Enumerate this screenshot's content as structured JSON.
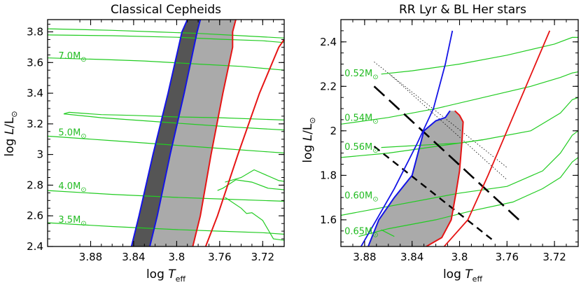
{
  "colors": {
    "track": "#22cc22",
    "blue_edge": "#1414e6",
    "red_edge": "#e61414",
    "strip_fill": "#aaaaaa",
    "dark_fill": "#555555"
  },
  "chart_data": [
    {
      "type": "line",
      "title": "Classical Cepheids",
      "xlabel": "log T_eff",
      "ylabel": "log L/L_⊙",
      "xlim": [
        3.92,
        3.7
      ],
      "ylim": [
        2.4,
        3.88
      ],
      "x_reversed": true,
      "xticks": [
        3.88,
        3.84,
        3.8,
        3.76,
        3.72
      ],
      "xtick_labels": [
        "3.88",
        "3.84",
        "3.8",
        "3.76",
        "3.72"
      ],
      "yticks": [
        2.4,
        2.6,
        2.8,
        3.0,
        3.2,
        3.4,
        3.6,
        3.8
      ],
      "ytick_labels": [
        "2.4",
        "2.6",
        "2.8",
        "3",
        "3.2",
        "3.4",
        "3.6",
        "3.8"
      ],
      "mass_labels": [
        {
          "text": "7.0M",
          "sub": "⊙",
          "x": 3.91,
          "y": 3.625
        },
        {
          "text": "5.0M",
          "sub": "⊙",
          "x": 3.91,
          "y": 3.125
        },
        {
          "text": "4.0M",
          "sub": "⊙",
          "x": 3.91,
          "y": 2.775
        },
        {
          "text": "3.5M",
          "sub": "⊙",
          "x": 3.91,
          "y": 2.555
        }
      ],
      "tracks": [
        {
          "points": [
            [
              3.92,
              3.82
            ],
            [
              3.86,
              3.81
            ],
            [
              3.82,
              3.8
            ],
            [
              3.78,
              3.79
            ],
            [
              3.74,
              3.775
            ],
            [
              3.7,
              3.76
            ]
          ]
        },
        {
          "points": [
            [
              3.92,
              3.78
            ],
            [
              3.86,
              3.775
            ],
            [
              3.8,
              3.765
            ],
            [
              3.76,
              3.752
            ],
            [
              3.72,
              3.742
            ],
            [
              3.7,
              3.73
            ]
          ]
        },
        {
          "points": [
            [
              3.92,
              3.63
            ],
            [
              3.87,
              3.62
            ],
            [
              3.83,
              3.61
            ],
            [
              3.78,
              3.59
            ],
            [
              3.74,
              3.575
            ],
            [
              3.7,
              3.55
            ]
          ]
        },
        {
          "points": [
            [
              3.905,
              3.265
            ],
            [
              3.9,
              3.275
            ],
            [
              3.87,
              3.26
            ],
            [
              3.84,
              3.255
            ],
            [
              3.8,
              3.245
            ],
            [
              3.76,
              3.24
            ],
            [
              3.72,
              3.23
            ],
            [
              3.7,
              3.225
            ]
          ]
        },
        {
          "points": [
            [
              3.905,
              3.265
            ],
            [
              3.87,
              3.24
            ],
            [
              3.83,
              3.22
            ],
            [
              3.79,
              3.2
            ],
            [
              3.75,
              3.18
            ],
            [
              3.7,
              3.16
            ]
          ]
        },
        {
          "points": [
            [
              3.92,
              3.12
            ],
            [
              3.86,
              3.09
            ],
            [
              3.8,
              3.06
            ],
            [
              3.76,
              3.04
            ],
            [
              3.72,
              3.02
            ],
            [
              3.7,
              3.01
            ]
          ]
        },
        {
          "points": [
            [
              3.92,
              2.765
            ],
            [
              3.86,
              2.74
            ],
            [
              3.8,
              2.72
            ],
            [
              3.76,
              2.71
            ],
            [
              3.72,
              2.7
            ],
            [
              3.7,
              2.695
            ]
          ]
        },
        {
          "points": [
            [
              3.92,
              2.555
            ],
            [
              3.86,
              2.53
            ],
            [
              3.8,
              2.51
            ],
            [
              3.76,
              2.5
            ],
            [
              3.72,
              2.49
            ],
            [
              3.7,
              2.48
            ]
          ]
        },
        {
          "points": [
            [
              3.755,
              2.82
            ],
            [
              3.74,
              2.85
            ],
            [
              3.728,
              2.9
            ],
            [
              3.705,
              2.83
            ],
            [
              3.7,
              2.825
            ]
          ]
        },
        {
          "points": [
            [
              3.762,
              2.765
            ],
            [
              3.757,
              2.78
            ],
            [
              3.745,
              2.835
            ],
            [
              3.73,
              2.82
            ],
            [
              3.715,
              2.78
            ],
            [
              3.7,
              2.77
            ]
          ]
        },
        {
          "points": [
            [
              3.755,
              2.72
            ],
            [
              3.74,
              2.65
            ],
            [
              3.735,
              2.615
            ],
            [
              3.73,
              2.62
            ],
            [
              3.72,
              2.57
            ],
            [
              3.71,
              2.45
            ],
            [
              3.7,
              2.44
            ]
          ]
        }
      ],
      "blue_edge_outer": [
        [
          3.842,
          2.4
        ],
        [
          3.835,
          2.6
        ],
        [
          3.822,
          3.0
        ],
        [
          3.808,
          3.4
        ],
        [
          3.795,
          3.8
        ],
        [
          3.79,
          3.88
        ]
      ],
      "blue_edge_inner": [
        [
          3.825,
          2.4
        ],
        [
          3.818,
          2.6
        ],
        [
          3.806,
          3.0
        ],
        [
          3.793,
          3.4
        ],
        [
          3.781,
          3.8
        ],
        [
          3.778,
          3.88
        ]
      ],
      "red_edge_1": [
        [
          3.785,
          2.4
        ],
        [
          3.778,
          2.6
        ],
        [
          3.768,
          3.0
        ],
        [
          3.757,
          3.4
        ],
        [
          3.748,
          3.7
        ],
        [
          3.748,
          3.8
        ],
        [
          3.745,
          3.88
        ]
      ],
      "red_edge_2": [
        [
          3.773,
          2.4
        ],
        [
          3.762,
          2.6
        ],
        [
          3.743,
          3.0
        ],
        [
          3.723,
          3.4
        ],
        [
          3.705,
          3.7
        ],
        [
          3.7,
          3.75
        ]
      ]
    },
    {
      "type": "line",
      "title": "RR Lyr & BL Her stars",
      "xlabel": "log T_eff",
      "ylabel": "log L/L_⊙",
      "xlim": [
        3.9,
        3.7
      ],
      "ylim": [
        1.48,
        2.5
      ],
      "x_reversed": true,
      "xticks": [
        3.88,
        3.84,
        3.8,
        3.76,
        3.72
      ],
      "xtick_labels": [
        "3.88",
        "3.84",
        "3.8",
        "3.76",
        "3.72"
      ],
      "yticks": [
        1.6,
        1.8,
        2.0,
        2.2,
        2.4
      ],
      "ytick_labels": [
        "1.6",
        "1.8",
        "2",
        "2.2",
        "2.4"
      ],
      "mass_labels": [
        {
          "text": "0.52M",
          "sub": "⊙",
          "x": 3.897,
          "y": 2.245
        },
        {
          "text": "0.54M",
          "sub": "⊙",
          "x": 3.897,
          "y": 2.045
        },
        {
          "text": "0.56M",
          "sub": "⊙",
          "x": 3.897,
          "y": 1.915
        },
        {
          "text": "0.60M",
          "sub": "⊙",
          "x": 3.897,
          "y": 1.695
        },
        {
          "text": "0.65M",
          "sub": "⊙",
          "x": 3.897,
          "y": 1.535
        }
      ],
      "tracks": [
        {
          "points": [
            [
              3.866,
              2.255
            ],
            [
              3.84,
              2.27
            ],
            [
              3.8,
              2.3
            ],
            [
              3.76,
              2.34
            ],
            [
              3.72,
              2.39
            ],
            [
              3.705,
              2.42
            ],
            [
              3.7,
              2.42
            ]
          ]
        },
        {
          "points": [
            [
              3.9,
              2.03
            ],
            [
              3.86,
              2.06
            ],
            [
              3.82,
              2.1
            ],
            [
              3.78,
              2.15
            ],
            [
              3.74,
              2.2
            ],
            [
              3.715,
              2.24
            ],
            [
              3.705,
              2.26
            ],
            [
              3.7,
              2.265
            ]
          ]
        },
        {
          "points": [
            [
              3.9,
              1.88
            ],
            [
              3.86,
              1.9
            ],
            [
              3.82,
              1.93
            ],
            [
              3.78,
              1.96
            ],
            [
              3.74,
              2.0
            ],
            [
              3.715,
              2.08
            ],
            [
              3.705,
              2.14
            ],
            [
              3.7,
              2.15
            ]
          ]
        },
        {
          "points": [
            [
              3.866,
              1.925
            ],
            [
              3.8,
              1.945
            ],
            [
              3.78,
              1.96
            ]
          ]
        },
        {
          "points": [
            [
              3.9,
              1.62
            ],
            [
              3.86,
              1.66
            ],
            [
              3.82,
              1.7
            ],
            [
              3.8,
              1.72
            ],
            [
              3.76,
              1.75
            ],
            [
              3.73,
              1.82
            ],
            [
              3.715,
              1.9
            ],
            [
              3.705,
              1.98
            ],
            [
              3.7,
              2.0
            ]
          ]
        },
        {
          "points": [
            [
              3.885,
              1.525
            ],
            [
              3.86,
              1.56
            ],
            [
              3.82,
              1.6
            ],
            [
              3.79,
              1.64
            ],
            [
              3.755,
              1.68
            ],
            [
              3.73,
              1.74
            ],
            [
              3.715,
              1.79
            ],
            [
              3.705,
              1.86
            ],
            [
              3.7,
              1.88
            ]
          ]
        },
        {
          "points": [
            [
              3.866,
              1.555
            ],
            [
              3.855,
              1.525
            ]
          ]
        }
      ],
      "blue_edge": [
        [
          3.883,
          1.48
        ],
        [
          3.87,
          1.6
        ],
        [
          3.855,
          1.74
        ],
        [
          3.836,
          1.94
        ],
        [
          3.822,
          2.1
        ],
        [
          3.812,
          2.3
        ],
        [
          3.806,
          2.45
        ]
      ],
      "blue_edge_lower": [
        [
          3.877,
          1.48
        ],
        [
          3.868,
          1.6
        ],
        [
          3.855,
          1.7
        ],
        [
          3.84,
          1.8
        ],
        [
          3.83,
          2.0
        ],
        [
          3.82,
          2.045
        ],
        [
          3.812,
          2.06
        ],
        [
          3.808,
          2.09
        ]
      ],
      "red_edge_short": [
        [
          3.828,
          1.48
        ],
        [
          3.815,
          1.52
        ],
        [
          3.807,
          1.6
        ],
        [
          3.803,
          1.72
        ],
        [
          3.8,
          1.82
        ],
        [
          3.798,
          1.95
        ],
        [
          3.797,
          2.04
        ],
        [
          3.8,
          2.07
        ],
        [
          3.804,
          2.09
        ]
      ],
      "red_edge_long": [
        [
          3.813,
          1.48
        ],
        [
          3.793,
          1.6
        ],
        [
          3.776,
          1.8
        ],
        [
          3.76,
          2.0
        ],
        [
          3.744,
          2.2
        ],
        [
          3.724,
          2.45
        ]
      ],
      "long_dash": [
        [
          3.872,
          2.2
        ],
        [
          3.75,
          1.6
        ]
      ],
      "short_dash": [
        [
          3.872,
          1.93
        ],
        [
          3.77,
          1.5
        ]
      ],
      "dotted_lines": [
        [
          [
            3.872,
            2.31
          ],
          [
            3.76,
            1.835
          ]
        ],
        [
          [
            3.858,
            2.25
          ],
          [
            3.76,
            1.78
          ]
        ]
      ]
    }
  ]
}
